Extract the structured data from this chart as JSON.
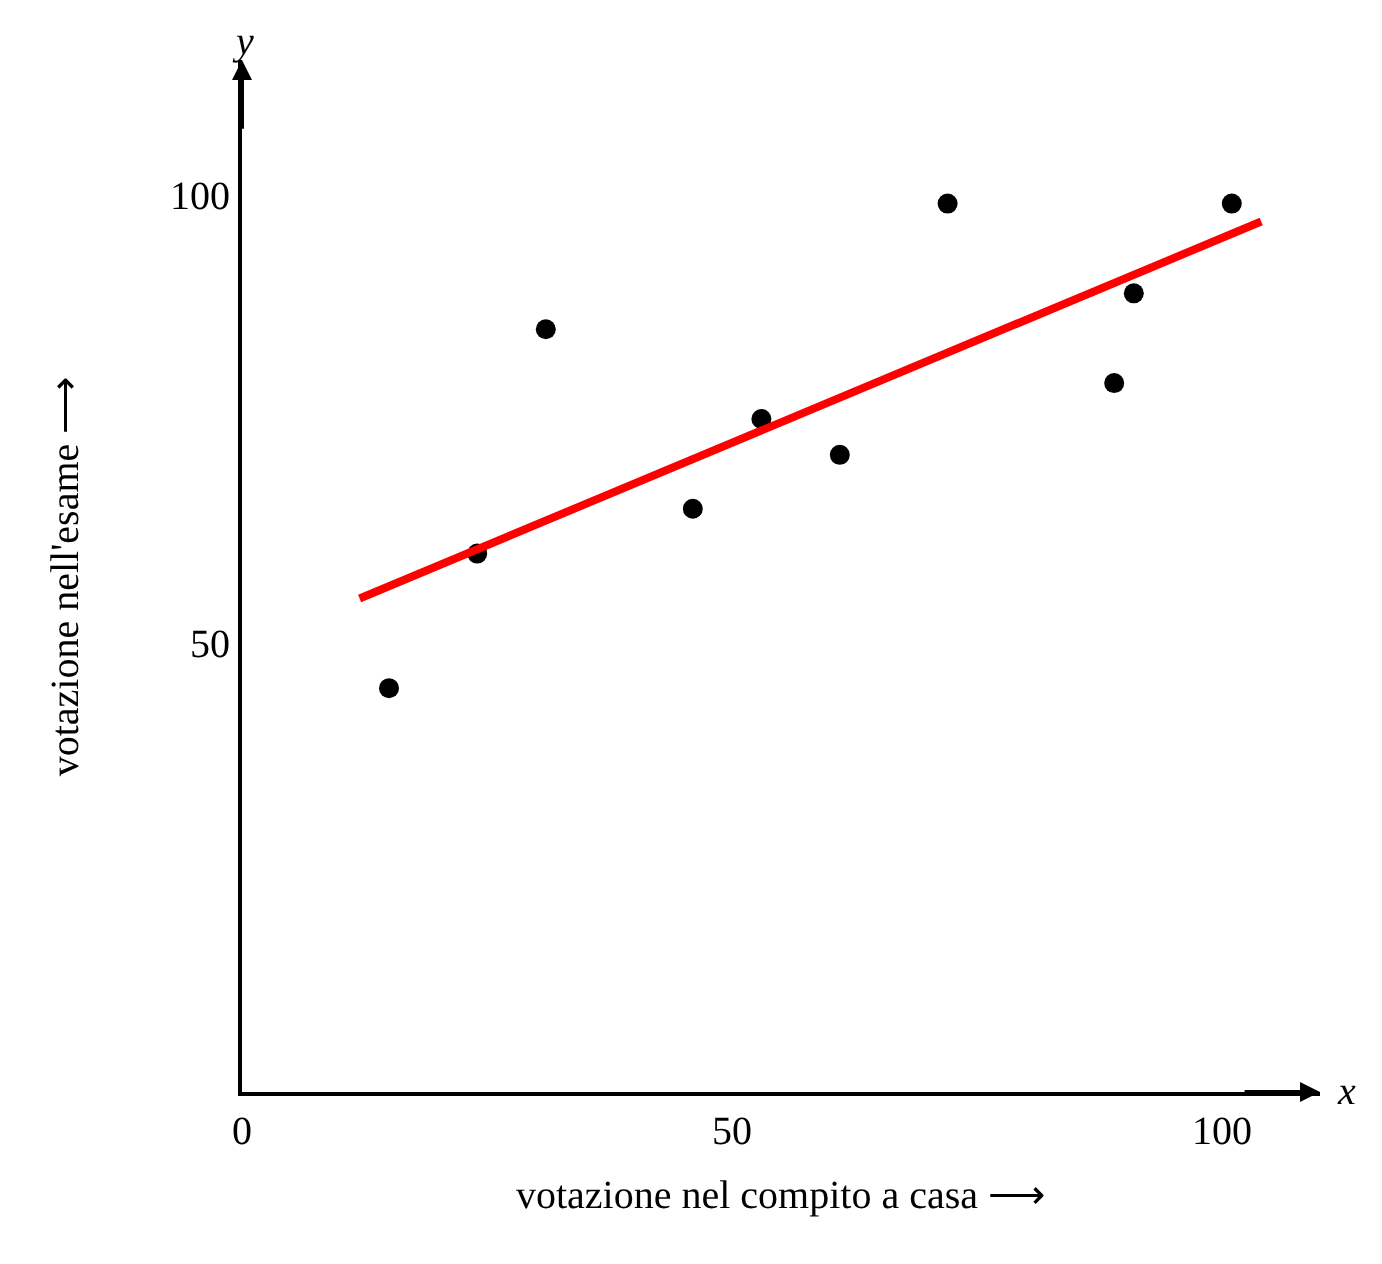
{
  "chart_data": {
    "type": "scatter",
    "xlabel": "votazione nel compito a casa ⟶",
    "ylabel": "votazione nell'esame ⟶",
    "annotations": [
      "x",
      "y"
    ],
    "xlim": [
      0,
      110
    ],
    "ylim": [
      0,
      115
    ],
    "xticks": [
      0,
      50,
      100
    ],
    "yticks": [
      50,
      100
    ],
    "marker": "circle",
    "series": [
      {
        "color": "#000000",
        "x": [
          15,
          24,
          31,
          46,
          53,
          61,
          72,
          89,
          91,
          101
        ],
        "values": [
          45,
          60,
          85,
          65,
          75,
          71,
          99,
          79,
          89,
          99
        ]
      },
      {
        "type": "line",
        "color": "#ff0000",
        "x": [
          12,
          104
        ],
        "values": [
          55,
          97
        ],
        "line_style": "solid",
        "marker": "none"
      }
    ]
  }
}
